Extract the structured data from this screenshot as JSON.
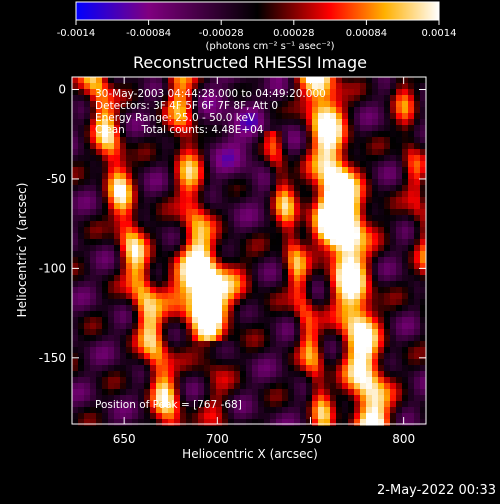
{
  "colorbar": {
    "tick_labels": [
      "-0.0014",
      "-0.00084",
      "-0.00028",
      "0.00028",
      "0.00084",
      "0.0014"
    ],
    "unit_label": "(photons cm⁻² s⁻¹ asec⁻²)"
  },
  "chart_data": {
    "type": "heatmap",
    "title": "Reconstructed RHESSI Image",
    "xlabel": "Heliocentric X (arcsec)",
    "ylabel": "Heliocentric Y (arcsec)",
    "xlim": [
      622,
      812
    ],
    "ylim": [
      -187,
      7
    ],
    "x_ticks": [
      650,
      700,
      750,
      800
    ],
    "y_ticks": [
      0,
      -50,
      -100,
      -150
    ],
    "color_range": [
      -0.0014,
      0.0014
    ],
    "colormap_stops": [
      "#0000ff",
      "#800080",
      "#000000",
      "#ff0000",
      "#ffb000",
      "#ffffff"
    ],
    "annotations": [
      "30-May-2003 04:44:28.000 to 04:49:20.000",
      "Detectors: 3F 4F 5F 6F 7F 8F, Att 0",
      "Energy Range: 25.0 - 50.0 keV",
      "Clean     Total counts: 4.48E+04"
    ],
    "peak_label": "Position of Peak = [767 -68]",
    "peak": [
      767,
      -68
    ]
  },
  "footer": {
    "timestamp": "2-May-2022 00:33"
  }
}
